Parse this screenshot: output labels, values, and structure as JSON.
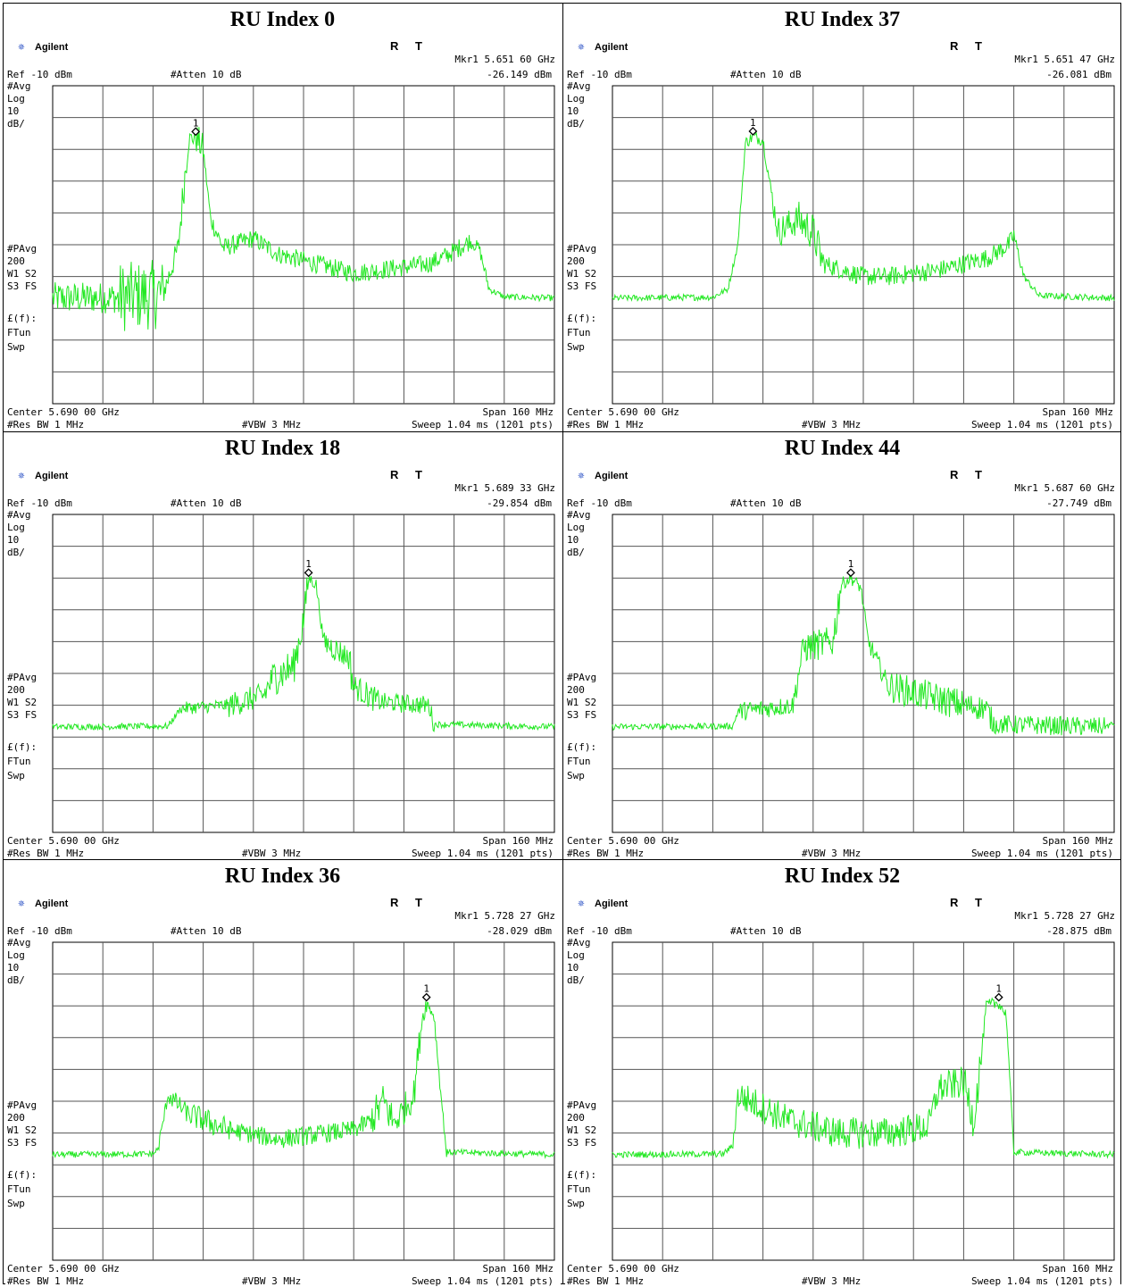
{
  "common": {
    "brand": "Agilent",
    "r_label": "R",
    "t_label": "T",
    "ref": "Ref -10 dBm",
    "atten": "#Atten 10 dB",
    "left_labels": [
      "#Avg",
      "Log",
      "10",
      "dB/"
    ],
    "left_labels2": [
      "#PAvg",
      "200",
      "W1  S2",
      "S3  FS"
    ],
    "left_labels3": [
      "£(f):",
      "FTun",
      "Swp"
    ],
    "center": "Center 5.690 00 GHz",
    "span": "Span 160 MHz",
    "res_bw": "#Res BW 1 MHz",
    "vbw": "#VBW 3 MHz",
    "sweep": "Sweep 1.04 ms (1201 pts)",
    "marker_id": "1",
    "trace_color": "#22e822"
  },
  "panels": [
    {
      "title": "RU Index 0",
      "mkr": "Mkr1  5.651 60 GHz",
      "level": "-26.149 dBm",
      "trace": [
        [
          0,
          -76.8
        ],
        [
          1.3,
          -76.6
        ],
        [
          2.2,
          -75.5
        ],
        [
          2.5,
          -61
        ],
        [
          2.7,
          -27
        ],
        [
          2.85,
          -26.1
        ],
        [
          3.0,
          -30
        ],
        [
          3.15,
          -52
        ],
        [
          3.4,
          -61
        ],
        [
          4.0,
          -58
        ],
        [
          4.5,
          -63
        ],
        [
          5.0,
          -65
        ],
        [
          5.5,
          -67
        ],
        [
          6.0,
          -69
        ],
        [
          6.5,
          -68
        ],
        [
          7.0,
          -67
        ],
        [
          7.5,
          -66
        ],
        [
          7.9,
          -63
        ],
        [
          8.3,
          -59
        ],
        [
          8.5,
          -61
        ],
        [
          8.7,
          -74
        ],
        [
          9.0,
          -76.4
        ],
        [
          10,
          -76.8
        ]
      ],
      "noise": [
        5,
        11,
        4,
        6,
        3,
        5,
        2,
        3,
        3,
        3,
        3,
        3,
        3,
        3,
        3,
        3,
        3,
        3,
        2,
        2,
        1,
        1,
        1
      ]
    },
    {
      "title": "RU Index 37",
      "mkr": "Mkr1  5.651 47 GHz",
      "level": "-26.081 dBm",
      "trace": [
        [
          0,
          -76.8
        ],
        [
          2.0,
          -76.5
        ],
        [
          2.3,
          -74
        ],
        [
          2.5,
          -60
        ],
        [
          2.65,
          -28
        ],
        [
          2.8,
          -26
        ],
        [
          3.0,
          -27
        ],
        [
          3.15,
          -42
        ],
        [
          3.3,
          -56
        ],
        [
          3.7,
          -52
        ],
        [
          4.0,
          -56
        ],
        [
          4.2,
          -66
        ],
        [
          4.6,
          -68
        ],
        [
          5.0,
          -70
        ],
        [
          5.5,
          -70
        ],
        [
          6.0,
          -69
        ],
        [
          6.5,
          -68
        ],
        [
          7.0,
          -66
        ],
        [
          7.5,
          -64
        ],
        [
          7.9,
          -60
        ],
        [
          8.0,
          -57
        ],
        [
          8.2,
          -70
        ],
        [
          8.5,
          -76
        ],
        [
          10,
          -76.8
        ]
      ],
      "noise": [
        1,
        1,
        1,
        1,
        2,
        2,
        2,
        4,
        5,
        6,
        6,
        3,
        3,
        3,
        3,
        3,
        3,
        3,
        3,
        3,
        2,
        1,
        1,
        1
      ]
    },
    {
      "title": "RU Index 18",
      "mkr": "Mkr1  5.689 33 GHz",
      "level": "-29.854 dBm",
      "trace": [
        [
          0,
          -76.8
        ],
        [
          2.3,
          -76.6
        ],
        [
          2.55,
          -71
        ],
        [
          3.5,
          -70
        ],
        [
          4.2,
          -67
        ],
        [
          4.4,
          -61
        ],
        [
          4.8,
          -58
        ],
        [
          5.0,
          -43
        ],
        [
          5.1,
          -30
        ],
        [
          5.25,
          -32
        ],
        [
          5.4,
          -50
        ],
        [
          5.9,
          -55
        ],
        [
          6.0,
          -64
        ],
        [
          6.5,
          -69
        ],
        [
          7.5,
          -70
        ],
        [
          7.6,
          -76
        ],
        [
          10,
          -76.8
        ]
      ],
      "noise": [
        1,
        1,
        2,
        4,
        5,
        6,
        6,
        5,
        2,
        2,
        4,
        6,
        4,
        3,
        3,
        1,
        1
      ]
    },
    {
      "title": "RU Index 44",
      "mkr": "Mkr1  5.687 60 GHz",
      "level": "-27.749 dBm",
      "trace": [
        [
          0,
          -76.8
        ],
        [
          2.4,
          -76.6
        ],
        [
          2.5,
          -72
        ],
        [
          3.6,
          -70
        ],
        [
          3.8,
          -52
        ],
        [
          4.4,
          -50
        ],
        [
          4.55,
          -32
        ],
        [
          4.75,
          -30
        ],
        [
          4.95,
          -33
        ],
        [
          5.1,
          -50
        ],
        [
          5.5,
          -64
        ],
        [
          7.0,
          -70
        ],
        [
          7.45,
          -71
        ],
        [
          7.6,
          -76
        ],
        [
          9.8,
          -76.8
        ],
        [
          10,
          -75.8
        ]
      ],
      "noise": [
        1,
        1,
        3,
        4,
        5,
        6,
        2,
        2,
        2,
        3,
        5,
        4,
        4,
        3,
        1,
        1
      ]
    },
    {
      "title": "RU Index 36",
      "mkr": "Mkr1  5.728 27 GHz",
      "level": "-28.029 dBm",
      "trace": [
        [
          0,
          -76.8
        ],
        [
          2.0,
          -76.6
        ],
        [
          2.1,
          -75
        ],
        [
          2.3,
          -58
        ],
        [
          2.7,
          -64
        ],
        [
          3.5,
          -69
        ],
        [
          4.5,
          -72
        ],
        [
          5.0,
          -71
        ],
        [
          5.5,
          -70
        ],
        [
          6.0,
          -69
        ],
        [
          6.35,
          -66
        ],
        [
          6.6,
          -60
        ],
        [
          6.8,
          -67
        ],
        [
          7.2,
          -58
        ],
        [
          7.35,
          -35
        ],
        [
          7.45,
          -29
        ],
        [
          7.6,
          -33
        ],
        [
          7.75,
          -60
        ],
        [
          7.85,
          -76
        ],
        [
          10,
          -76.8
        ]
      ],
      "noise": [
        1,
        1,
        2,
        3,
        4,
        3,
        3,
        3,
        3,
        3,
        6,
        6,
        5,
        5,
        3,
        2,
        2,
        2,
        1,
        1
      ]
    },
    {
      "title": "RU Index 52",
      "mkr": "Mkr1  5.728 27 GHz",
      "level": "-28.875 dBm",
      "trace": [
        [
          0,
          -76.8
        ],
        [
          2.2,
          -76.6
        ],
        [
          2.4,
          -74
        ],
        [
          2.5,
          -58
        ],
        [
          3.5,
          -66
        ],
        [
          4.5,
          -70
        ],
        [
          5.5,
          -70
        ],
        [
          6.3,
          -68
        ],
        [
          6.5,
          -56
        ],
        [
          7.0,
          -54
        ],
        [
          7.2,
          -66
        ],
        [
          7.35,
          -46
        ],
        [
          7.45,
          -30
        ],
        [
          7.7,
          -29
        ],
        [
          7.85,
          -33
        ],
        [
          8.0,
          -76
        ],
        [
          10,
          -76.8
        ]
      ],
      "noise": [
        1,
        1,
        3,
        5,
        5,
        5,
        5,
        5,
        5,
        6,
        6,
        2,
        2,
        2,
        1,
        1,
        1
      ]
    }
  ]
}
